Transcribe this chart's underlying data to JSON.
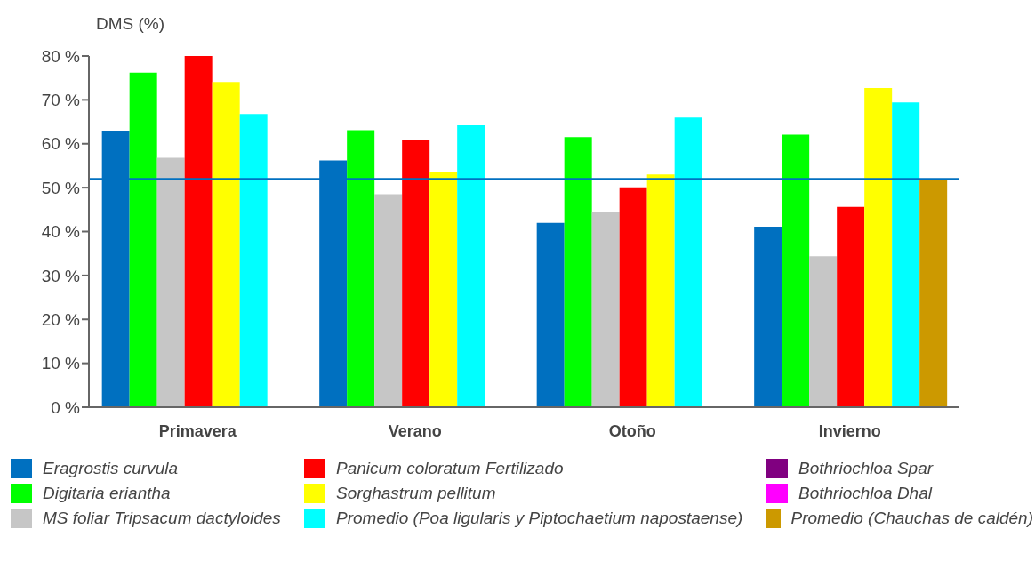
{
  "chart_data": {
    "type": "bar",
    "ylabel": "DMS (%)",
    "categories": [
      "Primavera",
      "Verano",
      "Otoño",
      "Invierno"
    ],
    "series": [
      {
        "name": "Eragrostis curvula",
        "color": "#0070c0",
        "values": [
          63,
          56.2,
          42,
          41.1
        ]
      },
      {
        "name": "Digitaria eriantha",
        "color": "#00ff00",
        "values": [
          76.2,
          63.1,
          61.5,
          62.1
        ]
      },
      {
        "name": "MS foliar Tripsacum dactyloides",
        "color": "#c6c6c6",
        "values": [
          56.8,
          48.5,
          44.4,
          34.4
        ]
      },
      {
        "name": "Panicum coloratum Fertilizado",
        "color": "#ff0000",
        "values": [
          80,
          60.9,
          50.1,
          45.6
        ]
      },
      {
        "name": "Sorghastrum pellitum",
        "color": "#ffff00",
        "values": [
          74.1,
          53.6,
          53,
          72.7
        ]
      },
      {
        "name": "Promedio (Poa ligularis y Piptochaetium napostaense)",
        "color": "#00ffff",
        "values": [
          66.8,
          64.2,
          66,
          69.4
        ]
      },
      {
        "name": "Bothriochloa Spar",
        "color": "#800080",
        "values": [
          null,
          null,
          null,
          null
        ]
      },
      {
        "name": "Bothriochloa Dhal",
        "color": "#ff00ff",
        "values": [
          null,
          null,
          null,
          null
        ]
      },
      {
        "name": "Promedio (Chauchas de caldén)",
        "color": "#cc9900",
        "values": [
          null,
          null,
          null,
          51.9
        ]
      }
    ],
    "ylim": [
      0,
      80
    ],
    "yticks": [
      {
        "value": 0,
        "label": "0 %"
      },
      {
        "value": 10,
        "label": "10 %"
      },
      {
        "value": 20,
        "label": "20 %"
      },
      {
        "value": 30,
        "label": "30 %"
      },
      {
        "value": 40,
        "label": "40 %"
      },
      {
        "value": 50,
        "label": "50 %"
      },
      {
        "value": 60,
        "label": "60 %"
      },
      {
        "value": 70,
        "label": "70 %"
      },
      {
        "value": 80,
        "label": "80 %"
      }
    ],
    "ref_lines": [
      {
        "axis": "y",
        "value": 52,
        "color": "#0070c0"
      }
    ],
    "legend": "bottom",
    "grid": false
  }
}
